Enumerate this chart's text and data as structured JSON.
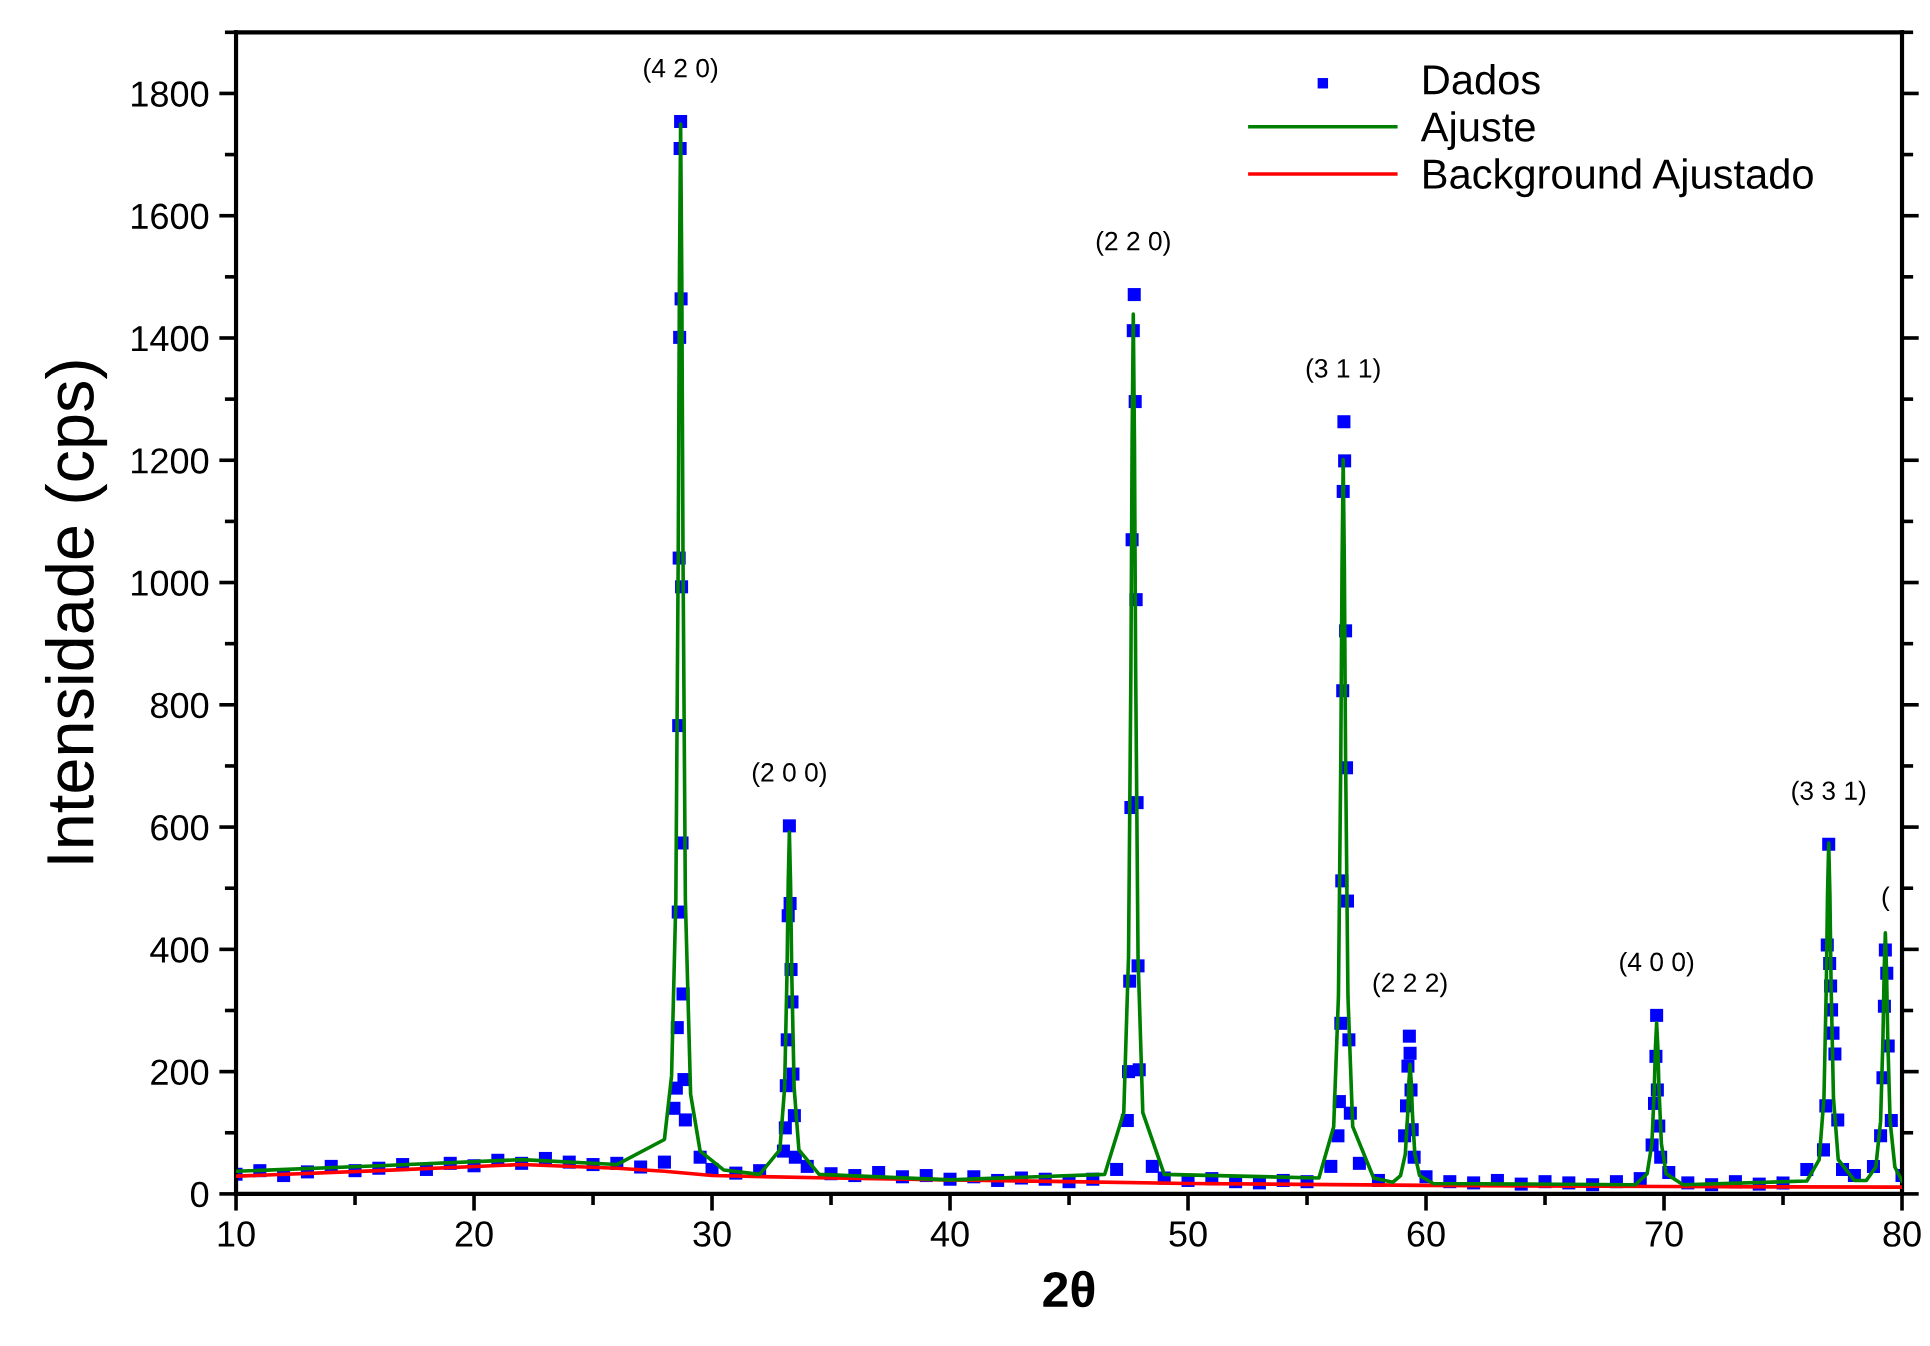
{
  "chart_data": {
    "type": "scatter",
    "xlabel": "2θ",
    "ylabel": "Intensidade (cps)",
    "xlim": [
      10,
      80
    ],
    "xticks": [
      10,
      20,
      30,
      40,
      50,
      60,
      70,
      80
    ],
    "ylim": [
      0,
      1900
    ],
    "yticks": [
      0,
      200,
      400,
      600,
      800,
      1000,
      1200,
      1400,
      1600,
      1800
    ],
    "grid": false,
    "legend": "top right",
    "annotations": [
      {
        "text": "(4 2 0)",
        "x": 28.68,
        "y": 1754
      },
      {
        "text": "(2 0 0)",
        "x": 33.25,
        "y": 602
      },
      {
        "text": "(2 2 0)",
        "x": 47.7,
        "y": 1471
      },
      {
        "text": "(3 1 1)",
        "x": 56.52,
        "y": 1263
      },
      {
        "text": "(2 2 2)",
        "x": 59.33,
        "y": 258
      },
      {
        "text": "(4 0 0)",
        "x": 69.69,
        "y": 292
      },
      {
        "text": "(3 3 1)",
        "x": 76.92,
        "y": 572
      },
      {
        "text": "(",
        "x": 79.3,
        "y": 399
      }
    ],
    "series": [
      {
        "name": "Dados",
        "marker": "square",
        "color": "#0000ff",
        "x": [
          10,
          11,
          12,
          13,
          14,
          15,
          16,
          17,
          18,
          19,
          20,
          21,
          22,
          23,
          24,
          25,
          26,
          27,
          28,
          28.4,
          28.5,
          28.54,
          28.58,
          28.6,
          28.62,
          28.64,
          28.66,
          28.68,
          28.7,
          28.72,
          28.74,
          28.78,
          28.82,
          28.88,
          29.5,
          30,
          31,
          32,
          33.0,
          33.08,
          33.12,
          33.16,
          33.2,
          33.25,
          33.28,
          33.32,
          33.36,
          33.4,
          33.46,
          33.5,
          34,
          35,
          36,
          37,
          38,
          39,
          40,
          41,
          42,
          43,
          44,
          45,
          46,
          47,
          47.45,
          47.5,
          47.55,
          47.6,
          47.65,
          47.7,
          47.74,
          47.78,
          47.82,
          47.86,
          47.9,
          47.95,
          48.5,
          49,
          50,
          51,
          52,
          53,
          54,
          55,
          56,
          56.3,
          56.36,
          56.42,
          56.46,
          56.5,
          56.52,
          56.55,
          56.58,
          56.62,
          56.66,
          56.7,
          56.76,
          56.82,
          57.2,
          58,
          59.1,
          59.18,
          59.24,
          59.3,
          59.33,
          59.37,
          59.42,
          59.5,
          60,
          61,
          62,
          63,
          64,
          65,
          66,
          67,
          68,
          69,
          69.5,
          69.6,
          69.66,
          69.69,
          69.72,
          69.78,
          69.86,
          70.2,
          71,
          72,
          73,
          74,
          75,
          76,
          76.7,
          76.8,
          76.86,
          76.92,
          76.96,
          77.0,
          77.04,
          77.1,
          77.18,
          77.3,
          77.5,
          78,
          78.8,
          79.1,
          79.2,
          79.26,
          79.3,
          79.36,
          79.42,
          79.55,
          80
        ],
        "values": [
          32,
          38,
          30,
          36,
          45,
          38,
          42,
          48,
          40,
          50,
          46,
          55,
          50,
          58,
          52,
          48,
          50,
          44,
          52,
          140,
          173,
          272,
          461,
          766,
          1040,
          1401,
          1710,
          1754,
          1464,
          993,
          574,
          327,
          187,
          121,
          60,
          40,
          34,
          38,
          70,
          108,
          177,
          252,
          455,
          602,
          475,
          367,
          314,
          196,
          128,
          60,
          45,
          33,
          30,
          35,
          28,
          30,
          24,
          28,
          22,
          26,
          24,
          20,
          24,
          40,
          120,
          200,
          348,
          632,
          1070,
          1412,
          1471,
          1296,
          972,
          640,
          373,
          203,
          45,
          26,
          22,
          25,
          20,
          18,
          22,
          20,
          45,
          95,
          151,
          279,
          512,
          823,
          1149,
          1263,
          1199,
          921,
          697,
          479,
          252,
          132,
          50,
          22,
          95,
          144,
          209,
          258,
          230,
          170,
          105,
          60,
          28,
          20,
          18,
          22,
          16,
          20,
          18,
          15,
          20,
          25,
          80,
          148,
          225,
          292,
          170,
          111,
          60,
          35,
          18,
          15,
          20,
          16,
          18,
          40,
          72,
          144,
          407,
          572,
          377,
          340,
          301,
          263,
          229,
          121,
          40,
          30,
          45,
          95,
          190,
          307,
          399,
          361,
          242,
          120,
          30
        ]
      },
      {
        "name": "Ajuste",
        "type": "line",
        "marker": "none",
        "color": "#008000",
        "x": [
          10,
          16,
          22,
          26,
          28.0,
          28.3,
          28.48,
          28.58,
          28.63,
          28.68,
          28.73,
          28.78,
          28.88,
          29.1,
          29.5,
          30.5,
          32.0,
          32.85,
          33.05,
          33.15,
          33.2,
          33.25,
          33.3,
          33.35,
          33.45,
          33.65,
          34.5,
          40,
          46.5,
          47.3,
          47.5,
          47.6,
          47.65,
          47.7,
          47.75,
          47.8,
          47.9,
          48.1,
          49.0,
          55.5,
          56.12,
          56.32,
          56.42,
          56.47,
          56.52,
          56.57,
          56.62,
          56.72,
          56.92,
          57.8,
          58.6,
          58.93,
          59.13,
          59.23,
          59.28,
          59.33,
          59.38,
          59.43,
          59.53,
          59.73,
          60.3,
          68.8,
          69.29,
          69.49,
          69.59,
          69.64,
          69.69,
          69.74,
          69.79,
          69.89,
          70.09,
          70.8,
          76.0,
          76.52,
          76.72,
          76.82,
          76.87,
          76.92,
          76.97,
          77.02,
          77.12,
          77.32,
          78.0,
          78.5,
          78.9,
          79.1,
          79.2,
          79.25,
          79.3,
          79.35,
          79.4,
          79.5,
          79.7,
          80
        ],
        "values": [
          37,
          46,
          56,
          48,
          89,
          193,
          483,
          1049,
          1495,
          1750,
          1493,
          1047,
          481,
          163,
          70,
          39,
          32,
          72,
          174,
          360,
          507,
          592,
          507,
          360,
          174,
          72,
          32,
          23,
          32,
          133,
          388,
          857,
          1226,
          1439,
          1226,
          857,
          388,
          133,
          32,
          26,
          110,
          323,
          715,
          1023,
          1201,
          1023,
          715,
          323,
          110,
          26,
          19,
          30,
          65,
          131,
          182,
          212,
          182,
          131,
          65,
          30,
          17,
          15,
          33,
          82,
          170,
          240,
          280,
          240,
          170,
          82,
          33,
          15,
          21,
          56,
          157,
          343,
          490,
          574,
          490,
          343,
          157,
          56,
          22,
          22,
          44,
          119,
          256,
          365,
          427,
          365,
          256,
          119,
          44,
          21
        ]
      },
      {
        "name": "Background Ajustado",
        "type": "line",
        "marker": "none",
        "color": "#ff0000",
        "x": [
          10,
          16,
          22,
          26,
          28,
          30,
          35,
          40,
          45,
          50,
          60,
          70,
          80
        ],
        "values": [
          29,
          38,
          48,
          42,
          37,
          30,
          26,
          23,
          20,
          17,
          14,
          12,
          11
        ]
      }
    ]
  }
}
